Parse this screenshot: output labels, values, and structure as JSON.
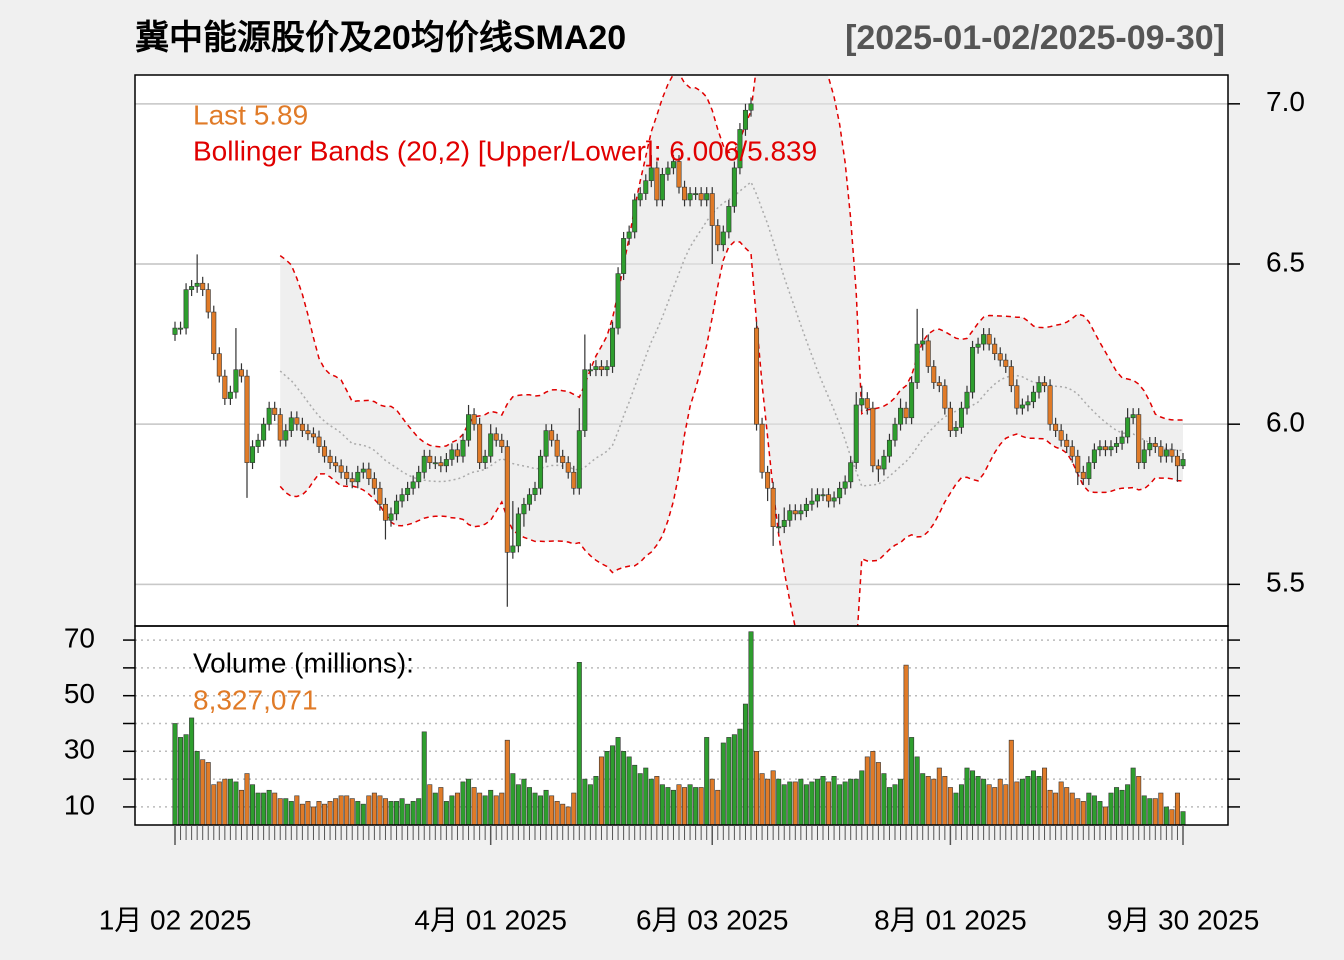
{
  "chart_data": [
    {
      "type": "candlestick",
      "title": "冀中能源股价及20均价线SMA20",
      "date_range": "[2025-01-02/2025-09-30]",
      "annotations": [
        "Last 5.89",
        "Bollinger Bands (20,2) [Upper/Lower]: 6.006/5.839"
      ],
      "bb_period": 20,
      "bb_sd": 2,
      "up_color": "#2e9e2e",
      "down_color": "#e07b28",
      "band_color": "#e00000",
      "categories": [
        "1月 02 2025",
        null,
        null,
        null,
        null,
        null,
        null,
        null,
        null,
        null,
        null,
        null,
        null,
        null,
        null,
        null,
        null,
        null,
        null,
        null,
        null,
        null,
        null,
        null,
        null,
        null,
        null,
        null,
        null,
        null,
        null,
        null,
        null,
        null,
        null,
        null,
        null,
        null,
        null,
        null,
        null,
        null,
        null,
        null,
        null,
        null,
        null,
        null,
        null,
        null,
        null,
        null,
        null,
        null,
        null,
        null,
        null,
        "4月 01 2025",
        null,
        null,
        null,
        null,
        null,
        null,
        null,
        null,
        null,
        null,
        null,
        null,
        null,
        null,
        null,
        null,
        null,
        null,
        null,
        null,
        null,
        null,
        null,
        null,
        null,
        null,
        null,
        null,
        null,
        null,
        null,
        null,
        null,
        null,
        null,
        null,
        null,
        null,
        null,
        "6月 03 2025",
        null,
        null,
        null,
        null,
        null,
        null,
        null,
        null,
        null,
        null,
        null,
        null,
        null,
        null,
        null,
        null,
        null,
        null,
        null,
        null,
        null,
        null,
        null,
        null,
        null,
        null,
        null,
        null,
        null,
        null,
        null,
        null,
        null,
        null,
        null,
        null,
        null,
        null,
        null,
        null,
        null,
        null,
        "8月 01 2025",
        null,
        null,
        null,
        null,
        null,
        null,
        null,
        null,
        null,
        null,
        null,
        null,
        null,
        null,
        null,
        null,
        null,
        null,
        null,
        null,
        null,
        null,
        null,
        null,
        null,
        null,
        null,
        null,
        null,
        null,
        null,
        null,
        null,
        null,
        null,
        null,
        null,
        null,
        null,
        null,
        null,
        "9月 30 2025"
      ],
      "open": [
        6.28,
        6.3,
        6.3,
        6.42,
        6.43,
        6.44,
        6.42,
        6.35,
        6.22,
        6.15,
        6.08,
        6.1,
        6.17,
        6.15,
        5.88,
        5.93,
        5.95,
        6.0,
        6.05,
        6.03,
        5.95,
        5.98,
        6.02,
        6.0,
        5.98,
        5.97,
        5.96,
        5.93,
        5.9,
        5.88,
        5.87,
        5.85,
        5.83,
        5.82,
        5.85,
        5.86,
        5.83,
        5.8,
        5.75,
        5.7,
        5.72,
        5.76,
        5.78,
        5.8,
        5.82,
        5.85,
        5.9,
        5.88,
        5.88,
        5.87,
        5.89,
        5.92,
        5.9,
        5.95,
        6.03,
        6.0,
        5.88,
        5.9,
        5.97,
        5.95,
        5.93,
        5.6,
        5.62,
        5.72,
        5.75,
        5.78,
        5.8,
        5.9,
        5.98,
        5.95,
        5.9,
        5.88,
        5.85,
        5.8,
        5.98,
        6.17,
        6.17,
        6.18,
        6.17,
        6.18,
        6.3,
        6.47,
        6.58,
        6.6,
        6.7,
        6.72,
        6.76,
        6.8,
        6.7,
        6.78,
        6.8,
        6.82,
        6.74,
        6.7,
        6.72,
        6.72,
        6.7,
        6.72,
        6.62,
        6.56,
        6.6,
        6.68,
        6.8,
        6.92,
        6.98,
        6.3,
        6.0,
        5.85,
        5.8,
        5.68,
        5.68,
        5.7,
        5.73,
        5.72,
        5.73,
        5.75,
        5.76,
        5.78,
        5.78,
        5.76,
        5.77,
        5.8,
        5.82,
        5.88,
        6.06,
        6.08,
        6.05,
        5.87,
        5.86,
        5.9,
        5.95,
        6.0,
        6.05,
        6.02,
        6.13,
        6.25,
        6.26,
        6.18,
        6.13,
        6.12,
        6.05,
        5.98,
        5.99,
        6.05,
        6.1,
        6.24,
        6.25,
        6.28,
        6.25,
        6.22,
        6.2,
        6.18,
        6.12,
        6.05,
        6.06,
        6.07,
        6.1,
        6.13,
        6.12,
        6.0,
        5.98,
        5.95,
        5.93,
        5.9,
        5.85,
        5.83,
        5.88,
        5.92,
        5.93,
        5.92,
        5.93,
        5.94,
        5.96,
        6.02,
        6.03,
        5.88,
        5.92,
        5.94,
        5.93,
        5.9,
        5.92,
        5.9,
        5.87
      ],
      "high": [
        6.32,
        6.32,
        6.44,
        6.45,
        6.53,
        6.46,
        6.44,
        6.37,
        6.24,
        6.17,
        6.12,
        6.3,
        6.19,
        6.17,
        5.95,
        5.97,
        6.02,
        6.07,
        6.07,
        6.05,
        6.0,
        6.04,
        6.04,
        6.02,
        6.0,
        5.99,
        5.98,
        5.95,
        5.92,
        5.9,
        5.89,
        5.87,
        5.85,
        5.87,
        5.88,
        5.88,
        5.85,
        5.82,
        5.77,
        5.74,
        5.78,
        5.8,
        5.82,
        5.84,
        5.87,
        5.92,
        5.92,
        5.9,
        5.9,
        5.91,
        5.94,
        5.94,
        5.97,
        6.06,
        6.05,
        6.02,
        5.92,
        6.0,
        5.99,
        5.97,
        5.95,
        5.76,
        5.74,
        5.77,
        5.8,
        5.82,
        5.92,
        6.0,
        6.0,
        5.97,
        5.92,
        5.9,
        5.87,
        6.05,
        6.28,
        6.19,
        6.2,
        6.2,
        6.2,
        6.32,
        6.49,
        6.6,
        6.62,
        6.72,
        6.74,
        6.78,
        6.84,
        6.82,
        6.8,
        6.82,
        6.84,
        6.84,
        6.76,
        6.74,
        6.74,
        6.74,
        6.74,
        6.74,
        6.64,
        6.62,
        6.7,
        6.82,
        6.94,
        7.0,
        7.02,
        6.32,
        6.02,
        5.87,
        5.82,
        5.72,
        5.74,
        5.75,
        5.75,
        5.75,
        5.77,
        5.8,
        5.8,
        5.8,
        5.8,
        5.79,
        5.82,
        5.84,
        5.9,
        6.1,
        6.12,
        6.1,
        6.07,
        5.89,
        5.92,
        5.97,
        6.02,
        6.08,
        6.07,
        6.15,
        6.36,
        6.3,
        6.28,
        6.2,
        6.15,
        6.14,
        6.07,
        6.01,
        6.07,
        6.12,
        6.26,
        6.27,
        6.3,
        6.3,
        6.27,
        6.24,
        6.22,
        6.2,
        6.14,
        6.08,
        6.09,
        6.12,
        6.15,
        6.15,
        6.14,
        6.02,
        6.0,
        5.97,
        5.95,
        5.92,
        5.87,
        5.9,
        5.94,
        5.95,
        5.95,
        5.95,
        5.96,
        5.98,
        6.05,
        6.05,
        6.05,
        5.95,
        5.96,
        5.96,
        5.95,
        5.94,
        5.94,
        5.92,
        5.91
      ],
      "low": [
        6.26,
        6.28,
        6.28,
        6.4,
        6.41,
        6.4,
        6.33,
        6.2,
        6.13,
        6.06,
        6.06,
        6.08,
        6.13,
        5.77,
        5.86,
        5.91,
        5.93,
        5.98,
        6.01,
        5.93,
        5.93,
        5.96,
        5.98,
        5.96,
        5.95,
        5.94,
        5.91,
        5.88,
        5.86,
        5.85,
        5.83,
        5.81,
        5.8,
        5.8,
        5.83,
        5.81,
        5.78,
        5.73,
        5.64,
        5.68,
        5.7,
        5.74,
        5.76,
        5.78,
        5.8,
        5.83,
        5.86,
        5.86,
        5.85,
        5.85,
        5.87,
        5.88,
        5.88,
        5.93,
        5.98,
        5.86,
        5.86,
        5.88,
        5.93,
        5.91,
        5.43,
        5.58,
        5.6,
        5.68,
        5.73,
        5.76,
        5.78,
        5.88,
        5.93,
        5.88,
        5.86,
        5.83,
        5.78,
        5.78,
        5.96,
        6.15,
        6.15,
        6.15,
        6.15,
        6.16,
        6.28,
        6.45,
        6.56,
        6.58,
        6.68,
        6.7,
        6.74,
        6.68,
        6.68,
        6.76,
        6.78,
        6.72,
        6.68,
        6.68,
        6.7,
        6.68,
        6.68,
        6.5,
        6.54,
        6.54,
        6.58,
        6.66,
        6.78,
        6.9,
        6.96,
        5.98,
        5.83,
        5.76,
        5.62,
        5.66,
        5.66,
        5.68,
        5.7,
        5.7,
        5.71,
        5.73,
        5.74,
        5.76,
        5.74,
        5.74,
        5.75,
        5.78,
        5.8,
        5.86,
        6.04,
        6.03,
        5.85,
        5.82,
        5.84,
        5.88,
        5.93,
        5.98,
        6.0,
        6.0,
        6.11,
        6.23,
        6.16,
        6.11,
        6.1,
        6.03,
        5.96,
        5.96,
        5.97,
        6.03,
        6.08,
        6.22,
        6.23,
        6.23,
        6.2,
        6.18,
        6.16,
        6.1,
        6.03,
        6.03,
        6.04,
        6.05,
        6.08,
        6.1,
        5.98,
        5.96,
        5.93,
        5.91,
        5.88,
        5.81,
        5.81,
        5.81,
        5.86,
        5.9,
        5.9,
        5.9,
        5.91,
        5.92,
        5.94,
        6.0,
        5.86,
        5.86,
        5.9,
        5.91,
        5.88,
        5.88,
        5.88,
        5.82,
        5.86
      ],
      "close": [
        6.3,
        6.3,
        6.42,
        6.43,
        6.44,
        6.42,
        6.35,
        6.22,
        6.15,
        6.08,
        6.1,
        6.17,
        6.15,
        5.88,
        5.93,
        5.95,
        6.0,
        6.05,
        6.03,
        5.95,
        5.98,
        6.02,
        6.0,
        5.98,
        5.97,
        5.96,
        5.93,
        5.9,
        5.88,
        5.87,
        5.85,
        5.83,
        5.82,
        5.85,
        5.86,
        5.83,
        5.8,
        5.75,
        5.7,
        5.72,
        5.76,
        5.78,
        5.8,
        5.82,
        5.85,
        5.9,
        5.88,
        5.88,
        5.87,
        5.89,
        5.92,
        5.9,
        5.95,
        6.03,
        6.0,
        5.88,
        5.9,
        5.97,
        5.95,
        5.93,
        5.6,
        5.62,
        5.72,
        5.75,
        5.78,
        5.8,
        5.9,
        5.98,
        5.95,
        5.9,
        5.88,
        5.85,
        5.8,
        5.98,
        6.17,
        6.17,
        6.18,
        6.17,
        6.18,
        6.3,
        6.47,
        6.58,
        6.6,
        6.7,
        6.72,
        6.76,
        6.8,
        6.7,
        6.78,
        6.8,
        6.82,
        6.74,
        6.7,
        6.72,
        6.72,
        6.7,
        6.72,
        6.62,
        6.56,
        6.6,
        6.68,
        6.8,
        6.92,
        6.98,
        7.0,
        6.0,
        5.85,
        5.8,
        5.68,
        5.68,
        5.7,
        5.73,
        5.72,
        5.73,
        5.75,
        5.76,
        5.78,
        5.78,
        5.76,
        5.77,
        5.8,
        5.82,
        5.88,
        6.06,
        6.08,
        6.05,
        5.87,
        5.86,
        5.9,
        5.95,
        6.0,
        6.05,
        6.02,
        6.13,
        6.25,
        6.26,
        6.18,
        6.13,
        6.12,
        6.05,
        5.98,
        5.99,
        6.05,
        6.1,
        6.24,
        6.25,
        6.28,
        6.25,
        6.22,
        6.2,
        6.18,
        6.12,
        6.05,
        6.06,
        6.07,
        6.1,
        6.13,
        6.12,
        6.0,
        5.98,
        5.95,
        5.93,
        5.9,
        5.85,
        5.83,
        5.88,
        5.92,
        5.93,
        5.92,
        5.93,
        5.94,
        5.96,
        6.02,
        6.03,
        5.88,
        5.92,
        5.94,
        5.93,
        5.9,
        5.92,
        5.9,
        5.87,
        5.89
      ],
      "ylim": [
        5.37,
        7.09
      ],
      "yticks": [
        {
          "value": 7,
          "label": "7.0"
        },
        6.5,
        {
          "value": 6,
          "label": "6.0"
        },
        5.5
      ],
      "grid": true
    },
    {
      "type": "bar",
      "title": "Volume (millions):",
      "last_label": "8,327,071",
      "values": [
        40,
        35,
        36,
        42,
        30,
        27,
        26,
        18,
        19,
        20,
        20,
        19,
        16,
        22,
        18,
        15,
        15,
        16,
        15,
        13,
        13,
        12,
        14,
        11,
        12,
        10,
        12,
        11,
        12,
        13,
        14,
        14,
        13,
        12,
        11,
        14,
        15,
        14,
        13,
        12,
        12,
        13,
        11,
        12,
        13,
        37,
        18,
        15,
        17,
        12,
        14,
        15,
        19,
        20,
        17,
        15,
        14,
        16,
        14,
        15,
        34,
        22,
        18,
        20,
        17,
        15,
        14,
        16,
        14,
        12,
        11,
        10,
        15,
        62,
        20,
        18,
        21,
        28,
        30,
        32,
        35,
        30,
        28,
        25,
        22,
        24,
        20,
        21,
        18,
        17,
        16,
        18,
        17,
        18,
        17,
        17,
        35,
        20,
        16,
        33,
        35,
        36,
        38,
        47,
        73,
        30,
        22,
        20,
        23,
        20,
        18,
        19,
        19,
        20,
        18,
        19,
        20,
        21,
        19,
        21,
        18,
        19,
        20,
        20,
        23,
        28,
        30,
        26,
        22,
        17,
        18,
        20,
        61,
        35,
        28,
        22,
        21,
        20,
        24,
        21,
        17,
        15,
        18,
        24,
        23,
        21,
        20,
        18,
        17,
        20,
        18,
        34,
        19,
        20,
        21,
        23,
        21,
        24,
        16,
        15,
        19,
        17,
        15,
        13,
        12,
        15,
        14,
        12,
        10,
        15,
        17,
        16,
        18,
        24,
        21,
        14,
        13,
        13,
        15,
        10,
        9,
        15,
        8.327071
      ],
      "ylim": [
        3.5,
        74.7
      ],
      "yticks": [
        10,
        30,
        50,
        70
      ],
      "minor_yticks": [
        20,
        40,
        60
      ],
      "grid": true
    }
  ]
}
